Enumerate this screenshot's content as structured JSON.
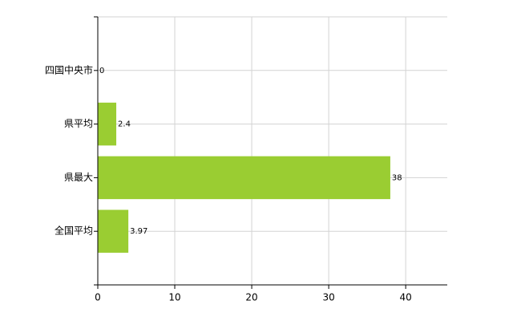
{
  "chart_data": {
    "type": "hbar",
    "categories": [
      "四国中央市",
      "県平均",
      "県最大",
      "全国平均"
    ],
    "values": [
      0,
      2.4,
      38,
      3.97
    ],
    "color": "#9acd32",
    "xlim": [
      0,
      45.4
    ],
    "xticks": [
      0,
      10,
      20,
      30,
      40
    ],
    "grid": true
  }
}
